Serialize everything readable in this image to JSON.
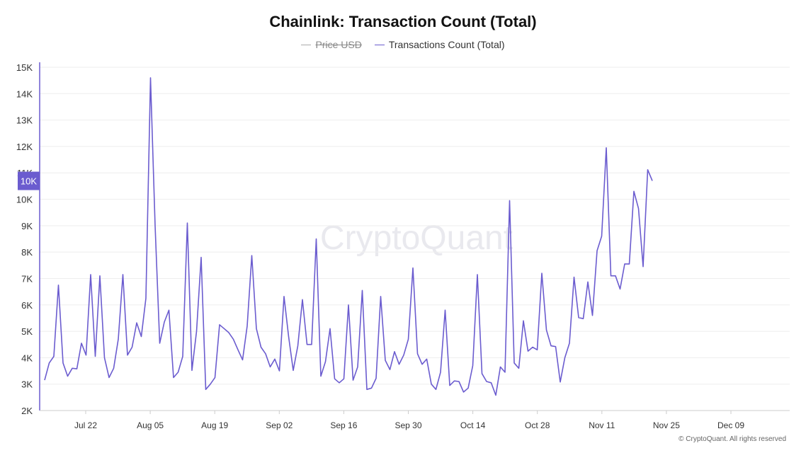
{
  "chart_data": {
    "type": "line",
    "title": "Chainlink: Transaction Count (Total)",
    "legend": {
      "placement": "top-center",
      "entries": [
        {
          "name": "Price USD",
          "color": "#aaaaaa",
          "hidden": true
        },
        {
          "name": "Transactions Count (Total)",
          "color": "#6b5ccf",
          "hidden": false
        }
      ]
    },
    "ylim": [
      2000,
      15000
    ],
    "y_ticks": [
      {
        "value": 2000,
        "label": "2K"
      },
      {
        "value": 3000,
        "label": "3K"
      },
      {
        "value": 4000,
        "label": "4K"
      },
      {
        "value": 5000,
        "label": "5K"
      },
      {
        "value": 6000,
        "label": "6K"
      },
      {
        "value": 7000,
        "label": "7K"
      },
      {
        "value": 8000,
        "label": "8K"
      },
      {
        "value": 9000,
        "label": "9K"
      },
      {
        "value": 10000,
        "label": "10K"
      },
      {
        "value": 11000,
        "label": "11K"
      },
      {
        "value": 12000,
        "label": "12K"
      },
      {
        "value": 13000,
        "label": "13K"
      },
      {
        "value": 14000,
        "label": "14K"
      },
      {
        "value": 15000,
        "label": "15K"
      }
    ],
    "x_ticks": [
      "Jul 22",
      "Aug 05",
      "Aug 19",
      "Sep 02",
      "Sep 16",
      "Sep 30",
      "Oct 14",
      "Oct 28",
      "Nov 11",
      "Nov 25",
      "Dec 09"
    ],
    "crosshair_label": "10K",
    "grid": "horizontal",
    "series": [
      {
        "name": "Transactions Count (Total)",
        "color": "#6b5ccf",
        "values": [
          3150,
          3800,
          4050,
          6750,
          3800,
          3300,
          3600,
          3580,
          4550,
          4100,
          7150,
          4050,
          7100,
          4000,
          3250,
          3600,
          4700,
          7150,
          4100,
          4400,
          5320,
          4800,
          6250,
          14600,
          9000,
          4550,
          5350,
          5800,
          3250,
          3450,
          4050,
          9100,
          3520,
          5000,
          7800,
          2800,
          3000,
          3250,
          5250,
          5100,
          4950,
          4700,
          4300,
          3920,
          5200,
          7870,
          5100,
          4400,
          4150,
          3650,
          3950,
          3500,
          6320,
          4800,
          3520,
          4450,
          6200,
          4500,
          4500,
          8500,
          3300,
          3850,
          5100,
          3200,
          3050,
          3200,
          6000,
          3150,
          3650,
          6550,
          2800,
          2850,
          3220,
          6320,
          3900,
          3550,
          4230,
          3750,
          4100,
          4700,
          7400,
          4150,
          3750,
          3950,
          3000,
          2800,
          3450,
          5800,
          2950,
          3120,
          3100,
          2700,
          2850,
          3700,
          7150,
          3400,
          3100,
          3050,
          2580,
          3650,
          3450,
          9950,
          3800,
          3600,
          5400,
          4250,
          4400,
          4300,
          7200,
          5050,
          4450,
          4420,
          3080,
          4000,
          4550,
          7050,
          5520,
          5480,
          6870,
          5600,
          8050,
          8600,
          11950,
          7100,
          7100,
          6600,
          7550,
          7550,
          10300,
          9650,
          7450,
          11120,
          10700
        ]
      }
    ]
  },
  "footer": {
    "watermark": "CryptoQuant",
    "credit": "© CryptoQuant. All rights reserved"
  }
}
